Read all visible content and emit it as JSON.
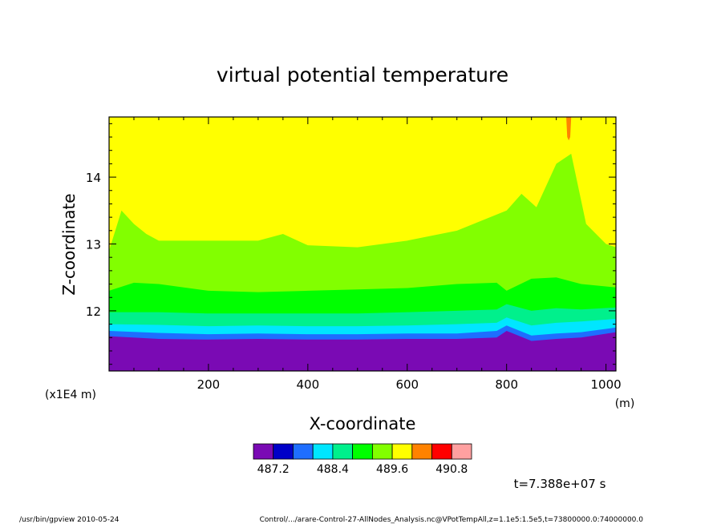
{
  "chart_data": {
    "type": "heatmap",
    "title": "virtual potential temperature",
    "xlabel": "X-coordinate",
    "ylabel": "Z-coordinate",
    "x_unit": "(m)",
    "y_unit": "(x1E4 m)",
    "xlim": [
      0,
      1020
    ],
    "ylim": [
      11.1,
      14.9
    ],
    "x_ticks": [
      200,
      400,
      600,
      800,
      1000
    ],
    "y_ticks": [
      12,
      13,
      14
    ],
    "levels": [
      486.8,
      487.2,
      487.6,
      488.0,
      488.4,
      488.8,
      489.2,
      489.6,
      490.0,
      490.4,
      490.8,
      491.2
    ],
    "colorbar_labels": [
      "487.2",
      "488.4",
      "489.6",
      "490.8"
    ],
    "colors": [
      "#7a0ab4",
      "#0000c8",
      "#1e6eff",
      "#00e6ff",
      "#00f08c",
      "#00ff00",
      "#82ff00",
      "#ffff00",
      "#ff8200",
      "#ff0000",
      "#ffa0a0"
    ],
    "isolines": [
      {
        "level": 487.6,
        "x": [
          0,
          100,
          200,
          300,
          400,
          500,
          600,
          700,
          780,
          800,
          850,
          900,
          950,
          1020
        ],
        "z": [
          11.62,
          11.58,
          11.57,
          11.58,
          11.57,
          11.57,
          11.58,
          11.58,
          11.6,
          11.7,
          11.55,
          11.58,
          11.6,
          11.68
        ]
      },
      {
        "level": 488.0,
        "x": [
          0,
          100,
          200,
          300,
          400,
          500,
          600,
          700,
          780,
          800,
          850,
          900,
          950,
          1020
        ],
        "z": [
          11.7,
          11.67,
          11.65,
          11.66,
          11.65,
          11.65,
          11.66,
          11.66,
          11.7,
          11.78,
          11.63,
          11.66,
          11.68,
          11.75
        ]
      },
      {
        "level": 488.4,
        "x": [
          0,
          100,
          200,
          300,
          400,
          500,
          600,
          700,
          780,
          800,
          850,
          900,
          950,
          1020
        ],
        "z": [
          11.8,
          11.79,
          11.77,
          11.78,
          11.77,
          11.77,
          11.78,
          11.8,
          11.82,
          11.9,
          11.78,
          11.82,
          11.84,
          11.88
        ]
      },
      {
        "level": 488.8,
        "x": [
          0,
          100,
          200,
          300,
          400,
          500,
          600,
          700,
          780,
          800,
          850,
          900,
          950,
          1020
        ],
        "z": [
          11.98,
          11.98,
          11.96,
          11.96,
          11.96,
          11.96,
          11.98,
          12.0,
          12.02,
          12.1,
          12.0,
          12.04,
          12.02,
          12.05
        ]
      },
      {
        "level": 489.2,
        "x": [
          0,
          50,
          100,
          200,
          300,
          400,
          500,
          600,
          700,
          780,
          800,
          850,
          900,
          950,
          1020
        ],
        "z": [
          12.3,
          12.42,
          12.4,
          12.3,
          12.28,
          12.3,
          12.32,
          12.34,
          12.4,
          12.42,
          12.3,
          12.48,
          12.5,
          12.4,
          12.35
        ]
      },
      {
        "level": 489.6,
        "x": [
          0,
          25,
          50,
          75,
          100,
          200,
          300,
          350,
          400,
          500,
          600,
          700,
          800,
          830,
          860,
          900,
          930,
          960,
          1000,
          1020
        ],
        "z": [
          12.9,
          13.5,
          13.3,
          13.15,
          13.05,
          13.05,
          13.05,
          13.15,
          12.98,
          12.95,
          13.05,
          13.2,
          13.5,
          13.75,
          13.55,
          14.2,
          14.35,
          13.3,
          13.0,
          12.95
        ]
      },
      {
        "level": 490.0,
        "x": [
          920,
          922,
          925,
          928,
          930
        ],
        "z": [
          14.9,
          14.6,
          14.55,
          14.6,
          14.9
        ]
      }
    ],
    "annotations": [
      "t=7.388e+07 s"
    ]
  },
  "footer": {
    "left": "/usr/bin/gpview  2010-05-24",
    "right": "Control/.../arare-Control-27-AllNodes_Analysis.nc@VPotTempAll,z=1.1e5:1.5e5,t=73800000.0:74000000.0"
  }
}
